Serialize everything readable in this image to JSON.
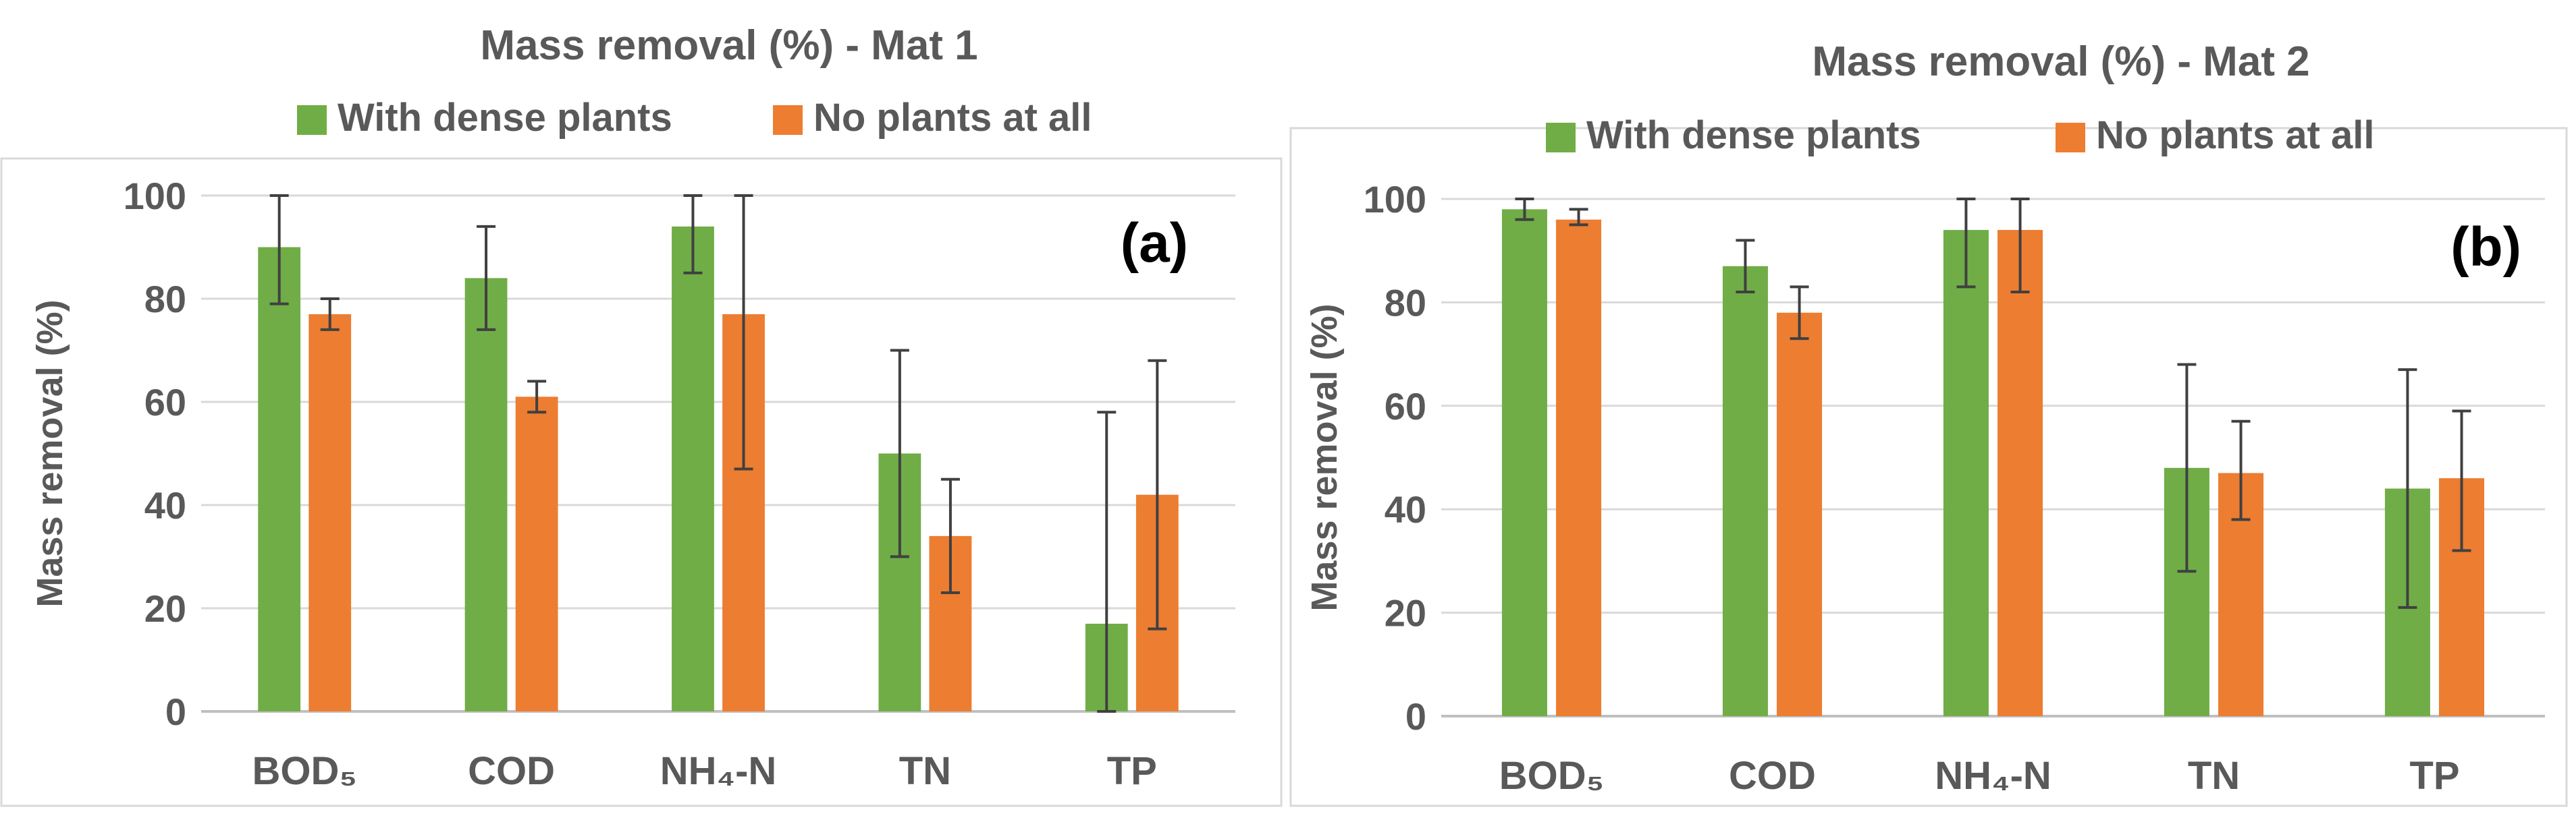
{
  "colors": {
    "series1": "#70ad47",
    "series2": "#ed7d31",
    "text": "#595959",
    "grid": "#d9d9d9",
    "axis": "#bfbfbf",
    "border": "#d9d9d9",
    "error_bar": "#404040"
  },
  "chart_data": [
    {
      "type": "bar",
      "title": "Mass removal (%) - Mat 1",
      "panel_label": "(a)",
      "xlabel": "",
      "ylabel": "Mass removal (%)",
      "ylim": [
        0,
        100
      ],
      "yticks": [
        0,
        20,
        40,
        60,
        80,
        100
      ],
      "grid": true,
      "legend_position": "top",
      "categories": [
        "BOD₅",
        "COD",
        "NH₄-N",
        "TN",
        "TP"
      ],
      "series": [
        {
          "name": "With dense plants",
          "values": [
            90,
            84,
            94,
            50,
            17
          ],
          "error_low": [
            79,
            74,
            85,
            30,
            0
          ],
          "error_high": [
            100,
            94,
            100,
            70,
            58
          ]
        },
        {
          "name": "No plants at all",
          "values": [
            77,
            61,
            77,
            34,
            42
          ],
          "error_low": [
            74,
            58,
            47,
            23,
            16
          ],
          "error_high": [
            80,
            64,
            100,
            45,
            68
          ]
        }
      ]
    },
    {
      "type": "bar",
      "title": "Mass removal (%) - Mat 2",
      "panel_label": "(b)",
      "xlabel": "",
      "ylabel": "Mass removal (%)",
      "ylim": [
        0,
        100
      ],
      "yticks": [
        0,
        20,
        40,
        60,
        80,
        100
      ],
      "grid": true,
      "legend_position": "top",
      "categories": [
        "BOD₅",
        "COD",
        "NH₄-N",
        "TN",
        "TP"
      ],
      "series": [
        {
          "name": "With dense plants",
          "values": [
            98,
            87,
            94,
            48,
            44
          ],
          "error_low": [
            96,
            82,
            83,
            28,
            21
          ],
          "error_high": [
            100,
            92,
            100,
            68,
            67
          ]
        },
        {
          "name": "No plants at all",
          "values": [
            96,
            78,
            94,
            47,
            46
          ],
          "error_low": [
            95,
            73,
            82,
            38,
            32
          ],
          "error_high": [
            98,
            83,
            100,
            57,
            59
          ]
        }
      ]
    }
  ]
}
